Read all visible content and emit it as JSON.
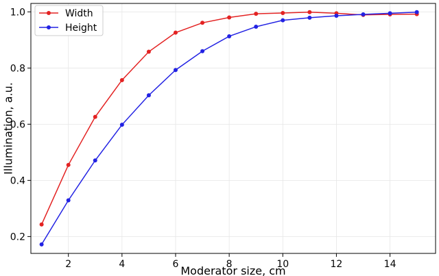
{
  "chart_data": {
    "type": "line",
    "xlabel": "Moderator size, cm",
    "ylabel": "Illumination, a.u.",
    "xlim": [
      0.6,
      15.7
    ],
    "ylim": [
      0.14,
      1.03
    ],
    "xticks": [
      2,
      4,
      6,
      8,
      10,
      12,
      14
    ],
    "xtick_labels": [
      "2",
      "4",
      "6",
      "8",
      "10",
      "12",
      "14"
    ],
    "yticks": [
      0.2,
      0.4,
      0.6,
      0.8,
      1.0
    ],
    "ytick_labels": [
      "0.2",
      "0.4",
      "0.6",
      "0.8",
      "1.0"
    ],
    "grid": true,
    "legend_position": "top-left",
    "x": [
      1,
      2,
      3,
      4,
      5,
      6,
      7,
      8,
      9,
      10,
      11,
      12,
      13,
      14,
      15
    ],
    "series": [
      {
        "name": "Width",
        "color": "#e32222",
        "values": [
          0.243,
          0.455,
          0.626,
          0.757,
          0.858,
          0.926,
          0.961,
          0.98,
          0.993,
          0.996,
          0.999,
          0.995,
          0.989,
          0.991,
          0.992
        ]
      },
      {
        "name": "Height",
        "color": "#2222e3",
        "values": [
          0.172,
          0.329,
          0.471,
          0.598,
          0.703,
          0.793,
          0.86,
          0.913,
          0.947,
          0.97,
          0.979,
          0.986,
          0.991,
          0.995,
          0.999
        ]
      }
    ]
  }
}
